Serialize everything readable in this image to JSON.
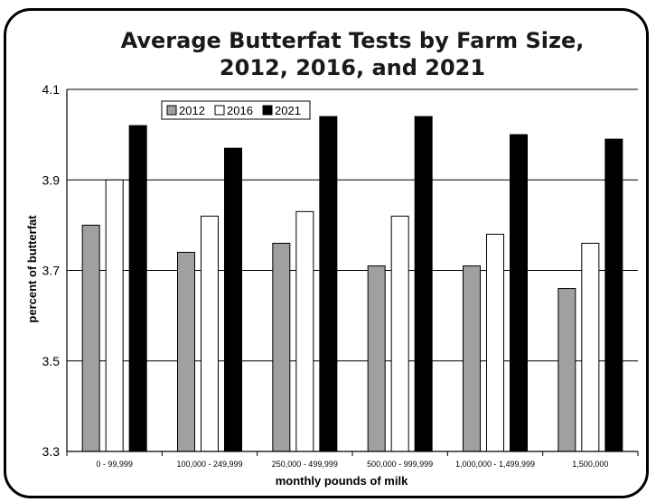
{
  "chart_data": {
    "type": "bar",
    "title": "Average Butterfat Tests by Farm Size, 2012, 2016, and 2021",
    "title_lines": [
      "Average Butterfat Tests by Farm Size,",
      "2012, 2016, and 2021"
    ],
    "xlabel": "monthly pounds of milk",
    "ylabel": "percent of butterfat",
    "ylim": [
      3.3,
      4.1
    ],
    "yticks": [
      "3.3",
      "3.5",
      "3.7",
      "3.9",
      "4.1"
    ],
    "grid": true,
    "legend_position": "top-left",
    "categories": [
      "0 - 99,999",
      "100,000 - 249,999",
      "250,000 - 499,999",
      "500,000 - 999,999",
      "1,000,000 - 1,499,999",
      "1,500,000"
    ],
    "series": [
      {
        "name": "2012",
        "color": "#a0a0a0",
        "values": [
          3.8,
          3.74,
          3.76,
          3.71,
          3.71,
          3.66
        ]
      },
      {
        "name": "2016",
        "color": "#ffffff",
        "values": [
          3.9,
          3.82,
          3.83,
          3.82,
          3.78,
          3.76
        ]
      },
      {
        "name": "2021",
        "color": "#000000",
        "values": [
          4.02,
          3.97,
          4.04,
          4.04,
          4.0,
          3.99
        ]
      }
    ]
  }
}
